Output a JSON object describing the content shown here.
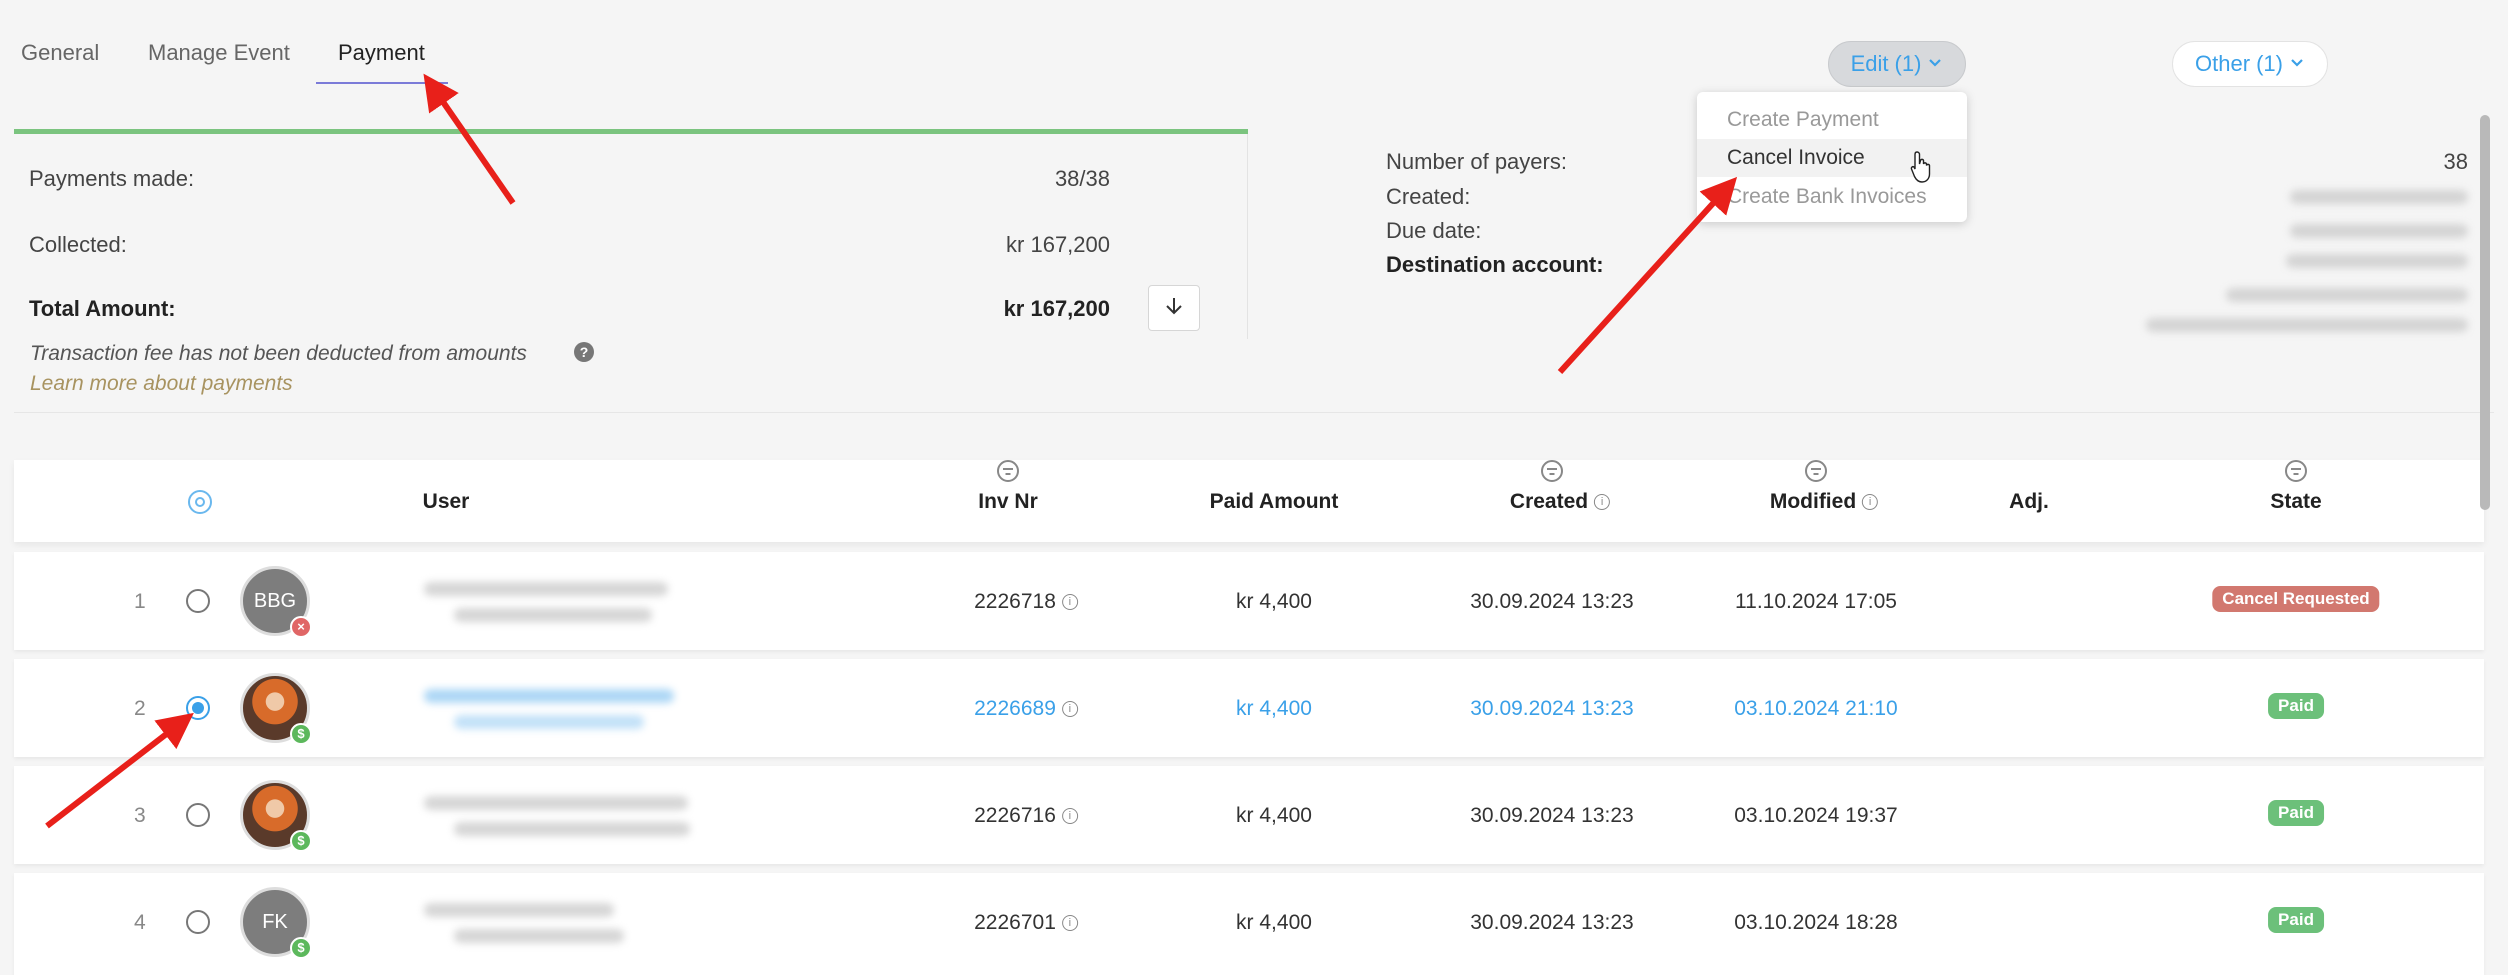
{
  "tabs": [
    {
      "label": "General"
    },
    {
      "label": "Manage Event"
    },
    {
      "label": "Payment"
    }
  ],
  "toolbar": {
    "edit_label": "Edit",
    "edit_count": "(1)",
    "other_label": "Other",
    "other_count": "(1)"
  },
  "edit_menu": {
    "items": [
      {
        "label": "Create Payment"
      },
      {
        "label": "Cancel Invoice"
      },
      {
        "label": "Create Bank Invoices"
      }
    ]
  },
  "summary": {
    "payments_made_label": "Payments made:",
    "payments_made_value": "38/38",
    "collected_label": "Collected:",
    "collected_value": "kr 167,200",
    "total_label": "Total Amount:",
    "total_value": "kr 167,200",
    "fee_note": "Transaction fee has not been deducted from amounts",
    "learn_more": "Learn more about payments"
  },
  "details": {
    "payers_label": "Number of payers:",
    "payers_value": "38",
    "created_label": "Created:",
    "due_label": "Due date:",
    "destination_label": "Destination account:"
  },
  "table": {
    "headers": {
      "user": "User",
      "inv_nr": "Inv Nr",
      "paid_amount": "Paid Amount",
      "created": "Created",
      "modified": "Modified",
      "adj": "Adj.",
      "state": "State"
    },
    "rows": [
      {
        "num": "1",
        "initials": "BBG",
        "inv": "2226718",
        "paid": "kr 4,400",
        "created": "30.09.2024 13:23",
        "modified": "11.10.2024 17:05",
        "state": "Cancel Requested"
      },
      {
        "num": "2",
        "initials": "",
        "inv": "2226689",
        "paid": "kr 4,400",
        "created": "30.09.2024 13:23",
        "modified": "03.10.2024 21:10",
        "state": "Paid"
      },
      {
        "num": "3",
        "initials": "",
        "inv": "2226716",
        "paid": "kr 4,400",
        "created": "30.09.2024 13:23",
        "modified": "03.10.2024 19:37",
        "state": "Paid"
      },
      {
        "num": "4",
        "initials": "FK",
        "inv": "2226701",
        "paid": "kr 4,400",
        "created": "30.09.2024 13:23",
        "modified": "03.10.2024 18:28",
        "state": "Paid"
      }
    ]
  },
  "colors": {
    "accent": "#3aa0e8",
    "progress": "#7bc47f",
    "paid_badge": "#6cc07a",
    "cancel_badge": "#d2786f",
    "annotation_arrow": "#e8201a"
  },
  "progress_fraction": 1.0
}
